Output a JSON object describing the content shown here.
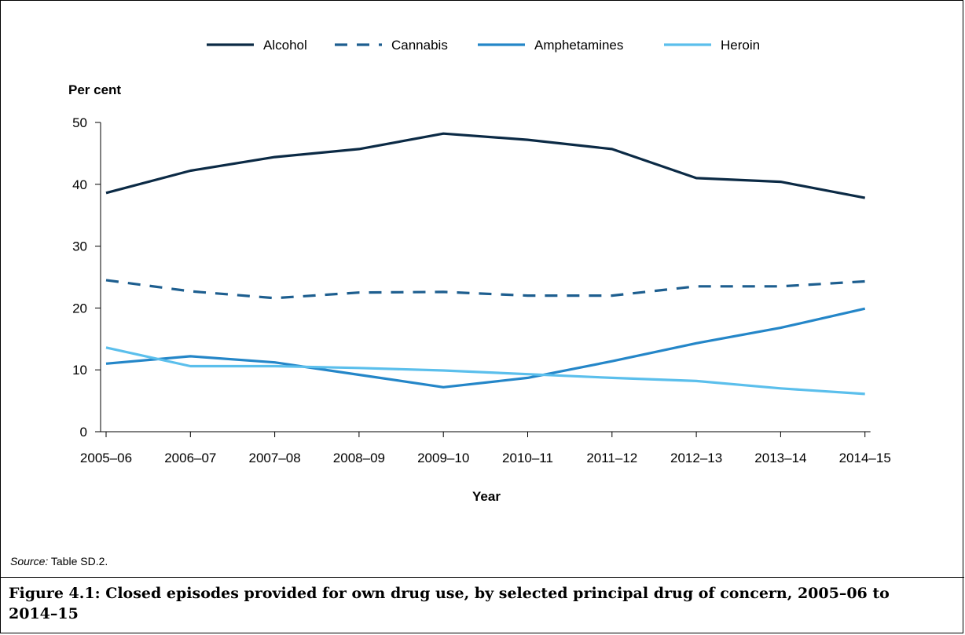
{
  "chart_data": {
    "type": "line",
    "ylabel": "Per cent",
    "xlabel": "Year",
    "ylim": [
      0,
      50
    ],
    "yticks": [
      0,
      10,
      20,
      30,
      40,
      50
    ],
    "grid": false,
    "legend_position": "top",
    "categories": [
      "2005–06",
      "2006–07",
      "2007–08",
      "2008–09",
      "2009–10",
      "2010–11",
      "2011–12",
      "2012–13",
      "2013–14",
      "2014–15"
    ],
    "series": [
      {
        "name": "Alcohol",
        "color": "#0b2a45",
        "dash": false,
        "values": [
          38.6,
          42.2,
          44.4,
          45.7,
          48.2,
          47.2,
          45.7,
          41.0,
          40.4,
          37.8
        ]
      },
      {
        "name": "Cannabis",
        "color": "#1d5e8f",
        "dash": true,
        "values": [
          24.5,
          22.7,
          21.6,
          22.5,
          22.6,
          22.0,
          22.0,
          23.5,
          23.5,
          24.3
        ]
      },
      {
        "name": "Amphetamines",
        "color": "#2486c8",
        "dash": false,
        "values": [
          11.0,
          12.2,
          11.2,
          9.2,
          7.2,
          8.7,
          11.4,
          14.3,
          16.8,
          19.9
        ]
      },
      {
        "name": "Heroin",
        "color": "#5bbfec",
        "dash": false,
        "values": [
          13.6,
          10.6,
          10.6,
          10.3,
          9.9,
          9.3,
          8.7,
          8.2,
          7.0,
          6.1
        ]
      }
    ]
  },
  "source": {
    "label": "Source:",
    "text": " Table SD.2."
  },
  "caption": "Figure 4.1: Closed episodes provided for own drug use, by selected principal drug of concern, 2005–06 to 2014–15"
}
